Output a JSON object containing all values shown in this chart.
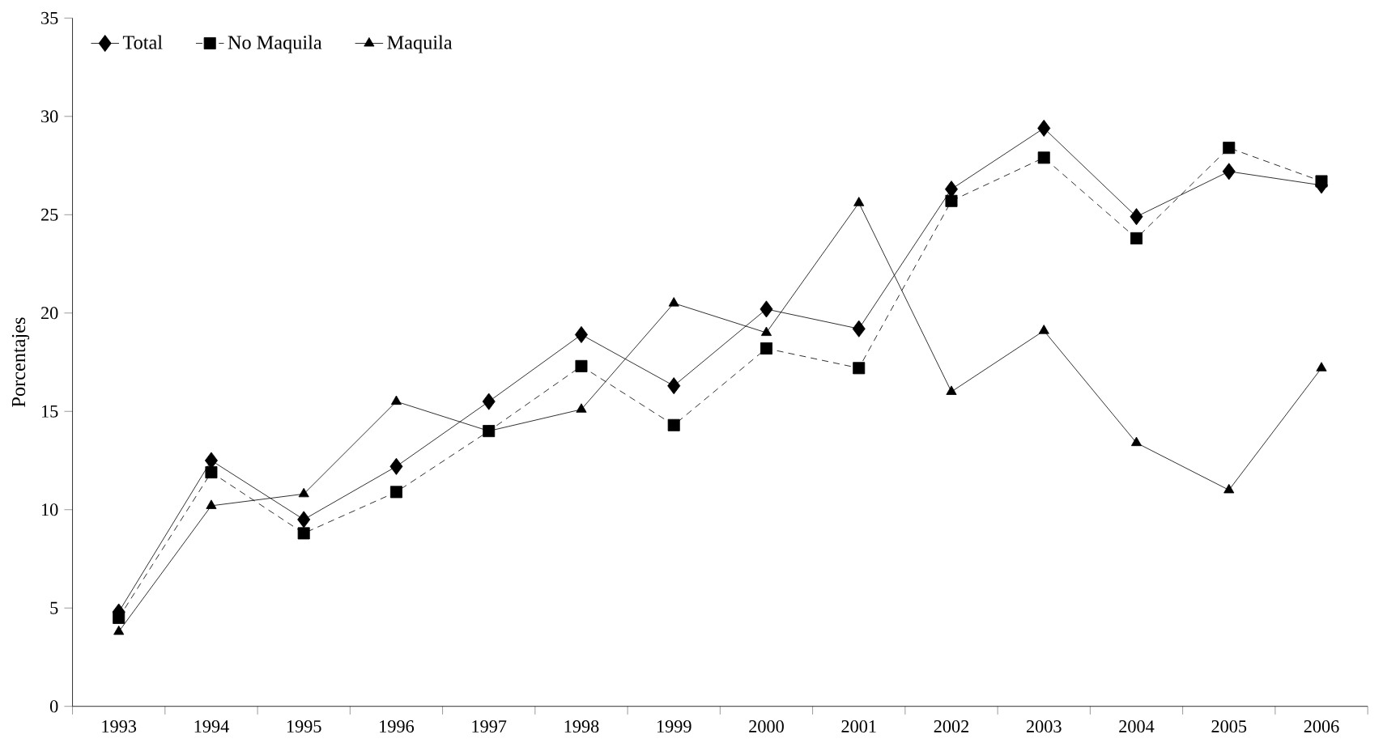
{
  "chart_data": {
    "type": "line",
    "ylabel": "Porcentajes",
    "categories": [
      "1993",
      "1994",
      "1995",
      "1996",
      "1997",
      "1998",
      "1999",
      "2000",
      "2001",
      "2002",
      "2003",
      "2004",
      "2005",
      "2006"
    ],
    "series": [
      {
        "name": "Total",
        "color": "#000000",
        "marker": "diamond",
        "line_style": "solid",
        "values": [
          4.8,
          12.5,
          9.5,
          12.2,
          15.5,
          18.9,
          16.3,
          20.2,
          19.2,
          26.3,
          29.4,
          24.9,
          27.2,
          26.5
        ]
      },
      {
        "name": "No Maquila",
        "color": "#000000",
        "marker": "square",
        "line_style": "dashed",
        "values": [
          4.5,
          11.9,
          8.8,
          10.9,
          14.0,
          17.3,
          14.3,
          18.2,
          17.2,
          25.7,
          27.9,
          23.8,
          28.4,
          26.7
        ]
      },
      {
        "name": "Maquila",
        "color": "#000000",
        "marker": "triangle",
        "line_style": "solid",
        "values": [
          3.8,
          10.2,
          10.8,
          15.5,
          14.0,
          15.1,
          20.5,
          19.0,
          25.6,
          16.0,
          19.1,
          13.4,
          11.0,
          17.2
        ]
      }
    ],
    "ylim": [
      0,
      35
    ],
    "yticks": [
      0,
      5,
      10,
      15,
      20,
      25,
      30,
      35
    ],
    "grid": false,
    "legend": "top left"
  }
}
